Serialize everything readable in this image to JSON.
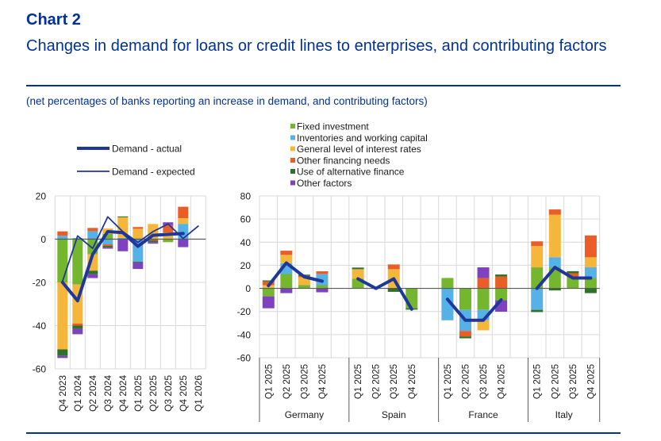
{
  "header": {
    "chart_number": "Chart 2",
    "title": "Changes in demand for loans or credit lines to enterprises, and contributing factors",
    "subtitle": "(net percentages of banks reporting an increase in demand, and contributing factors)"
  },
  "colors": {
    "title": "#003299",
    "line": "#1F3798",
    "grid": "#D9D9D9",
    "axis": "#595959"
  },
  "chart_data": [
    {
      "type": "bar",
      "stacked": true,
      "title": "",
      "xlabel": "",
      "ylabel": "",
      "ylim": [
        -60,
        20
      ],
      "yticks": [
        20,
        0,
        -20,
        -40,
        -60
      ],
      "grid": true,
      "legend_position": "top-left",
      "categories": [
        "Q4 2023",
        "Q1 2024",
        "Q2 2024",
        "Q3 2024",
        "Q4 2024",
        "Q1 2025",
        "Q2 2025",
        "Q3 2025",
        "Q4 2025",
        "Q1 2026"
      ],
      "series": [
        {
          "legend_ref": 0,
          "values": [
            -20,
            -21,
            -7,
            2.4,
            0,
            0,
            0,
            -1.4,
            0,
            null
          ]
        },
        {
          "legend_ref": 1,
          "values": [
            1.6,
            0.5,
            3.7,
            -2.4,
            0.6,
            -10.4,
            0,
            0,
            7.1,
            null
          ]
        },
        {
          "legend_ref": 2,
          "values": [
            -31,
            -18,
            -7.6,
            2.5,
            9.5,
            4.8,
            7,
            3,
            2.6,
            null
          ]
        },
        {
          "legend_ref": 3,
          "values": [
            2,
            -1,
            1.5,
            -0.7,
            0,
            0.8,
            -0.6,
            3.5,
            5.3,
            null
          ]
        },
        {
          "legend_ref": 4,
          "values": [
            -3,
            -1.5,
            -1.6,
            -0.7,
            0.4,
            -0.4,
            -0.8,
            0,
            0,
            null
          ]
        },
        {
          "legend_ref": 5,
          "values": [
            -1,
            -2.5,
            -1.8,
            -0.6,
            -5.6,
            -3,
            -0.7,
            1.3,
            -3.7,
            null
          ]
        }
      ],
      "lines": [
        {
          "name": "Demand - actual",
          "style": "thick",
          "values": [
            -20,
            -28.5,
            -7,
            3.5,
            3,
            -3.3,
            1.8,
            2.2,
            2.6,
            null
          ]
        },
        {
          "name": "Demand - expected",
          "style": "thin",
          "values": [
            -19.5,
            1.5,
            -4.3,
            10.3,
            3.5,
            -1.5,
            3.5,
            7,
            0.3,
            6
          ]
        }
      ]
    },
    {
      "type": "bar",
      "stacked": true,
      "title": "",
      "xlabel": "",
      "ylabel": "",
      "ylim": [
        -60,
        80
      ],
      "yticks": [
        80,
        60,
        40,
        20,
        0,
        -20,
        -40,
        -60
      ],
      "grid": true,
      "legend_position": "top",
      "groups": [
        {
          "name": "Germany",
          "categories": [
            "Q1 2025",
            "Q2 2025",
            "Q3 2025",
            "Q4 2025"
          ]
        },
        {
          "name": "Spain",
          "categories": [
            "Q1 2025",
            "Q2 2025",
            "Q3 2025",
            "Q4 2025"
          ]
        },
        {
          "name": "France",
          "categories": [
            "Q1 2025",
            "Q2 2025",
            "Q3 2025",
            "Q4 2025"
          ]
        },
        {
          "name": "Italy",
          "categories": [
            "Q1 2025",
            "Q2 2025",
            "Q3 2025",
            "Q4 2025"
          ]
        }
      ],
      "series": [
        {
          "name": "Fixed investment",
          "color": "#74B72E",
          "values": [
            -6.9,
            12.4,
            2.8,
            2.8,
            8.3,
            0,
            0,
            -17.2,
            9,
            -18.6,
            -18.6,
            -10.3,
            18.2,
            18.2,
            9.7,
            9
          ]
        },
        {
          "name": "Inventories and working capital",
          "color": "#56B1E6",
          "values": [
            0,
            9.4,
            0,
            9.7,
            0,
            0,
            0,
            0,
            -27.6,
            -18.2,
            -9,
            0,
            -18.6,
            8.7,
            0,
            9.2
          ]
        },
        {
          "name": "General level of interest rates",
          "color": "#F4B73C",
          "values": [
            2.8,
            7.2,
            6.9,
            0,
            8.3,
            0,
            16.6,
            0,
            0,
            0,
            -8.7,
            0,
            18.4,
            36.8,
            0,
            8.7
          ]
        },
        {
          "name": "Other financing needs",
          "color": "#EB5D26",
          "values": [
            3.2,
            3.6,
            1.1,
            2.3,
            0,
            0,
            4.1,
            0,
            0,
            -4.8,
            9,
            10.3,
            4.1,
            4.6,
            3.4,
            18.9
          ]
        },
        {
          "name": "Use of alternative finance",
          "color": "#2E7229",
          "values": [
            0.9,
            0,
            1.1,
            0,
            1.4,
            0,
            -3,
            -1.2,
            0,
            -1.6,
            0,
            1.7,
            -1.9,
            -1.8,
            1.8,
            -4.1
          ]
        },
        {
          "name": "Other factors",
          "color": "#7E42C0",
          "values": [
            -10.3,
            -4.1,
            0,
            -3.4,
            0,
            0,
            0,
            0,
            0,
            0,
            9.2,
            -9.9,
            0,
            0,
            0,
            0
          ]
        }
      ],
      "lines": [
        {
          "legend_ref": 0,
          "style": "thick",
          "values": [
            2.3,
            22,
            10,
            6.2,
            8.3,
            0,
            8.3,
            -18,
            -9.4,
            -27.6,
            -27.6,
            -9.9,
            0,
            18.2,
            9,
            9
          ]
        }
      ]
    }
  ]
}
